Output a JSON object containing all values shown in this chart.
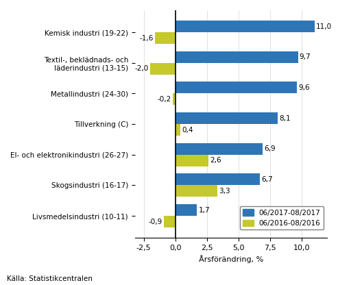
{
  "categories": [
    "Kemisk industri (19-22)",
    "Textil-, beklädnads- och\nläderindustri (13-15)",
    "Metallindustri (24-30)",
    "Tillverkning (C)",
    "El- och elektronikindustri (26-27)",
    "Skogsindustri (16-17)",
    "Livsmedelsindustri (10-11)"
  ],
  "values_2017": [
    11.0,
    9.7,
    9.6,
    8.1,
    6.9,
    6.7,
    1.7
  ],
  "values_2016": [
    -1.6,
    -2.0,
    -0.2,
    0.4,
    2.6,
    3.3,
    -0.9
  ],
  "color_2017": "#2E75B6",
  "color_2016": "#C5C92A",
  "legend_2017": "06/2017-08/2017",
  "legend_2016": "06/2016-08/2016",
  "xlabel": "Årsförändring, %",
  "source": "Källa: Statistikcentralen",
  "xlim": [
    -3.2,
    12.0
  ],
  "xticks": [
    -2.5,
    0.0,
    2.5,
    5.0,
    7.5,
    10.0
  ],
  "xtick_labels": [
    "-2,5",
    "0,0",
    "2,5",
    "5,0",
    "7,5",
    "10,0"
  ],
  "bar_height": 0.38,
  "background_color": "#ffffff"
}
